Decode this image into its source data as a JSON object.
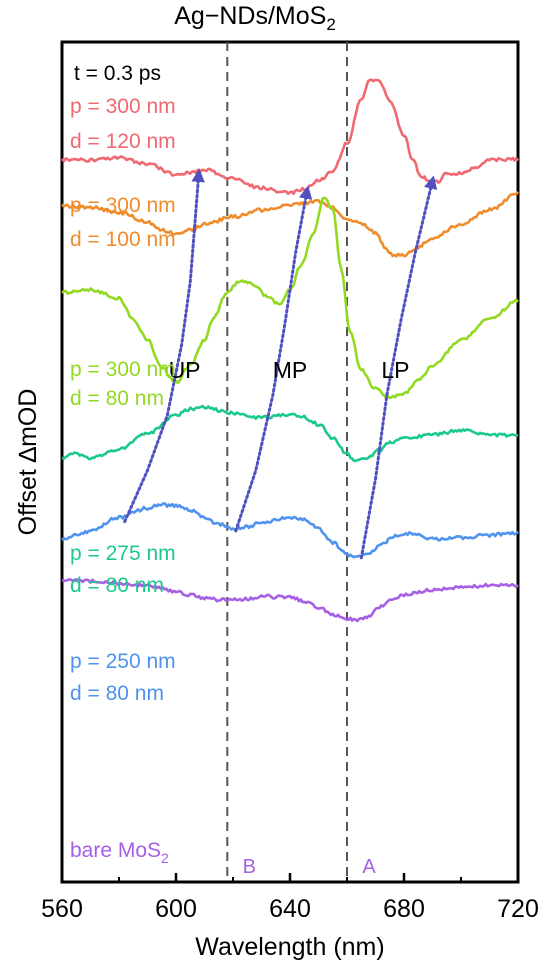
{
  "chart_data": {
    "type": "line",
    "title_main": "Ag−NDs/MoS",
    "title_sub": "2",
    "time_label": "t = 0.3 ps",
    "xlabel": "Wavelength (nm)",
    "ylabel": "Offset ∆mOD",
    "xlim": [
      560,
      720
    ],
    "ylim": [
      0,
      100
    ],
    "xticks": [
      "560",
      "600",
      "640",
      "680",
      "720"
    ],
    "tick_values": [
      560,
      600,
      640,
      680,
      720
    ],
    "vlines": [
      {
        "x": 618,
        "label": "B"
      },
      {
        "x": 660,
        "label": "A"
      }
    ],
    "series": [
      {
        "p_label": "p = 300 nm",
        "d_label": "d = 120 nm",
        "color": "#f06870",
        "points": [
          [
            560,
            86
          ],
          [
            570,
            85.9
          ],
          [
            580,
            86.2
          ],
          [
            590,
            85.5
          ],
          [
            600,
            84.2
          ],
          [
            605,
            84.5
          ],
          [
            610,
            84.8
          ],
          [
            620,
            83.7
          ],
          [
            630,
            82.6
          ],
          [
            640,
            82
          ],
          [
            645,
            82.5
          ],
          [
            650,
            83.5
          ],
          [
            655,
            84.6
          ],
          [
            660,
            88
          ],
          [
            665,
            93
          ],
          [
            668,
            95.5
          ],
          [
            671,
            95.5
          ],
          [
            675,
            93
          ],
          [
            680,
            89
          ],
          [
            683,
            86
          ],
          [
            686,
            84
          ],
          [
            689,
            83.5
          ],
          [
            692,
            83.4
          ],
          [
            695,
            84.3
          ],
          [
            700,
            84.4
          ],
          [
            705,
            85
          ],
          [
            710,
            86
          ],
          [
            715,
            86
          ],
          [
            720,
            86
          ]
        ]
      },
      {
        "p_label": "p = 300 nm",
        "d_label": "d = 100 nm",
        "color": "#ef8c2c",
        "points": [
          [
            560,
            80.5
          ],
          [
            570,
            80.3
          ],
          [
            580,
            79.7
          ],
          [
            590,
            78.6
          ],
          [
            595,
            77.6
          ],
          [
            600,
            77.2
          ],
          [
            605,
            77.6
          ],
          [
            610,
            78.3
          ],
          [
            620,
            79.2
          ],
          [
            630,
            80
          ],
          [
            640,
            80.6
          ],
          [
            650,
            81
          ],
          [
            655,
            80.3
          ],
          [
            660,
            79
          ],
          [
            665,
            78.4
          ],
          [
            670,
            77.3
          ],
          [
            673,
            75.7
          ],
          [
            676,
            74.6
          ],
          [
            680,
            74.6
          ],
          [
            685,
            75.6
          ],
          [
            690,
            76.7
          ],
          [
            700,
            78.3
          ],
          [
            710,
            80
          ],
          [
            720,
            82
          ]
        ]
      },
      {
        "p_label": "p = 300 nm",
        "d_label": "d = 80 nm",
        "color": "#92d923",
        "points": [
          [
            560,
            70.2
          ],
          [
            570,
            70.5
          ],
          [
            580,
            69.5
          ],
          [
            585,
            67
          ],
          [
            590,
            64.5
          ],
          [
            595,
            61.2
          ],
          [
            600,
            59.5
          ],
          [
            605,
            61.5
          ],
          [
            610,
            64.5
          ],
          [
            613,
            67
          ],
          [
            618,
            70.2
          ],
          [
            622,
            71.5
          ],
          [
            627,
            71.2
          ],
          [
            632,
            69.7
          ],
          [
            636,
            68.8
          ],
          [
            640,
            70.5
          ],
          [
            644,
            73.5
          ],
          [
            648,
            77
          ],
          [
            652,
            81.5
          ],
          [
            655,
            80
          ],
          [
            658,
            73
          ],
          [
            661,
            65.5
          ],
          [
            665,
            61
          ],
          [
            670,
            58.7
          ],
          [
            675,
            57.6
          ],
          [
            680,
            58.2
          ],
          [
            685,
            59.7
          ],
          [
            690,
            61.5
          ],
          [
            700,
            64.5
          ],
          [
            710,
            67
          ],
          [
            720,
            69.2
          ]
        ]
      },
      {
        "p_label": "p = 275 nm",
        "d_label": "d = 80 nm",
        "color": "#1bc98a",
        "points": [
          [
            560,
            50.5
          ],
          [
            565,
            51
          ],
          [
            570,
            50.5
          ],
          [
            580,
            51.5
          ],
          [
            590,
            53.4
          ],
          [
            600,
            55.5
          ],
          [
            605,
            56.3
          ],
          [
            610,
            56.5
          ],
          [
            620,
            55.8
          ],
          [
            630,
            55.3
          ],
          [
            640,
            55.6
          ],
          [
            645,
            55.3
          ],
          [
            650,
            54.5
          ],
          [
            655,
            52.8
          ],
          [
            660,
            51
          ],
          [
            663,
            50
          ],
          [
            667,
            50.5
          ],
          [
            672,
            51.5
          ],
          [
            675,
            52.3
          ],
          [
            680,
            52.8
          ],
          [
            690,
            53.2
          ],
          [
            700,
            53.8
          ],
          [
            710,
            53.2
          ],
          [
            720,
            53.2
          ]
        ]
      },
      {
        "p_label": "p = 250 nm",
        "d_label": "d = 80 nm",
        "color": "#4f93ee",
        "points": [
          [
            560,
            40.8
          ],
          [
            565,
            41.3
          ],
          [
            570,
            41.8
          ],
          [
            580,
            43.4
          ],
          [
            590,
            44.5
          ],
          [
            595,
            44.9
          ],
          [
            600,
            44.8
          ],
          [
            605,
            44.3
          ],
          [
            610,
            43.4
          ],
          [
            615,
            42.6
          ],
          [
            620,
            42.1
          ],
          [
            625,
            42.3
          ],
          [
            630,
            42.8
          ],
          [
            640,
            43.4
          ],
          [
            645,
            43.2
          ],
          [
            650,
            42.1
          ],
          [
            655,
            40.4
          ],
          [
            660,
            39
          ],
          [
            663,
            38.6
          ],
          [
            667,
            39
          ],
          [
            672,
            40.2
          ],
          [
            677,
            41.2
          ],
          [
            680,
            41.5
          ],
          [
            685,
            41.3
          ],
          [
            690,
            40.8
          ],
          [
            700,
            41
          ],
          [
            710,
            41.3
          ],
          [
            720,
            41.6
          ]
        ]
      },
      {
        "p_label": "bare MoS",
        "d_label": "",
        "color": "#a760e3",
        "points": [
          [
            560,
            36
          ],
          [
            570,
            35.8
          ],
          [
            580,
            35.6
          ],
          [
            590,
            35.3
          ],
          [
            600,
            34.6
          ],
          [
            605,
            34.2
          ],
          [
            610,
            33.8
          ],
          [
            615,
            33.6
          ],
          [
            620,
            33.6
          ],
          [
            625,
            33.7
          ],
          [
            630,
            34
          ],
          [
            640,
            33.9
          ],
          [
            645,
            33.4
          ],
          [
            650,
            32.7
          ],
          [
            655,
            31.8
          ],
          [
            660,
            31.3
          ],
          [
            663,
            31.2
          ],
          [
            667,
            31.6
          ],
          [
            672,
            32.8
          ],
          [
            677,
            33.8
          ],
          [
            680,
            34.2
          ],
          [
            690,
            34.8
          ],
          [
            700,
            35.1
          ],
          [
            710,
            35.3
          ],
          [
            720,
            35.3
          ]
        ]
      }
    ],
    "branches": [
      {
        "label": "UP",
        "label_pos": [
          603,
          60
        ],
        "points": [
          [
            582,
            42.9
          ],
          [
            590,
            49
          ],
          [
            597,
            55.6
          ],
          [
            602,
            64
          ],
          [
            605,
            71.5
          ],
          [
            608,
            84.3
          ]
        ]
      },
      {
        "label": "MP",
        "label_pos": [
          640,
          60
        ],
        "points": [
          [
            621,
            41.8
          ],
          [
            628,
            49
          ],
          [
            634,
            58
          ],
          [
            638,
            66
          ],
          [
            642,
            75
          ],
          [
            646,
            82.3
          ]
        ]
      },
      {
        "label": "LP",
        "label_pos": [
          677,
          60
        ],
        "points": [
          [
            665,
            38.6
          ],
          [
            670,
            48
          ],
          [
            674,
            58
          ],
          [
            679,
            67
          ],
          [
            684,
            75
          ],
          [
            690,
            83.5
          ]
        ]
      }
    ],
    "branch_color": "#5050c0"
  }
}
